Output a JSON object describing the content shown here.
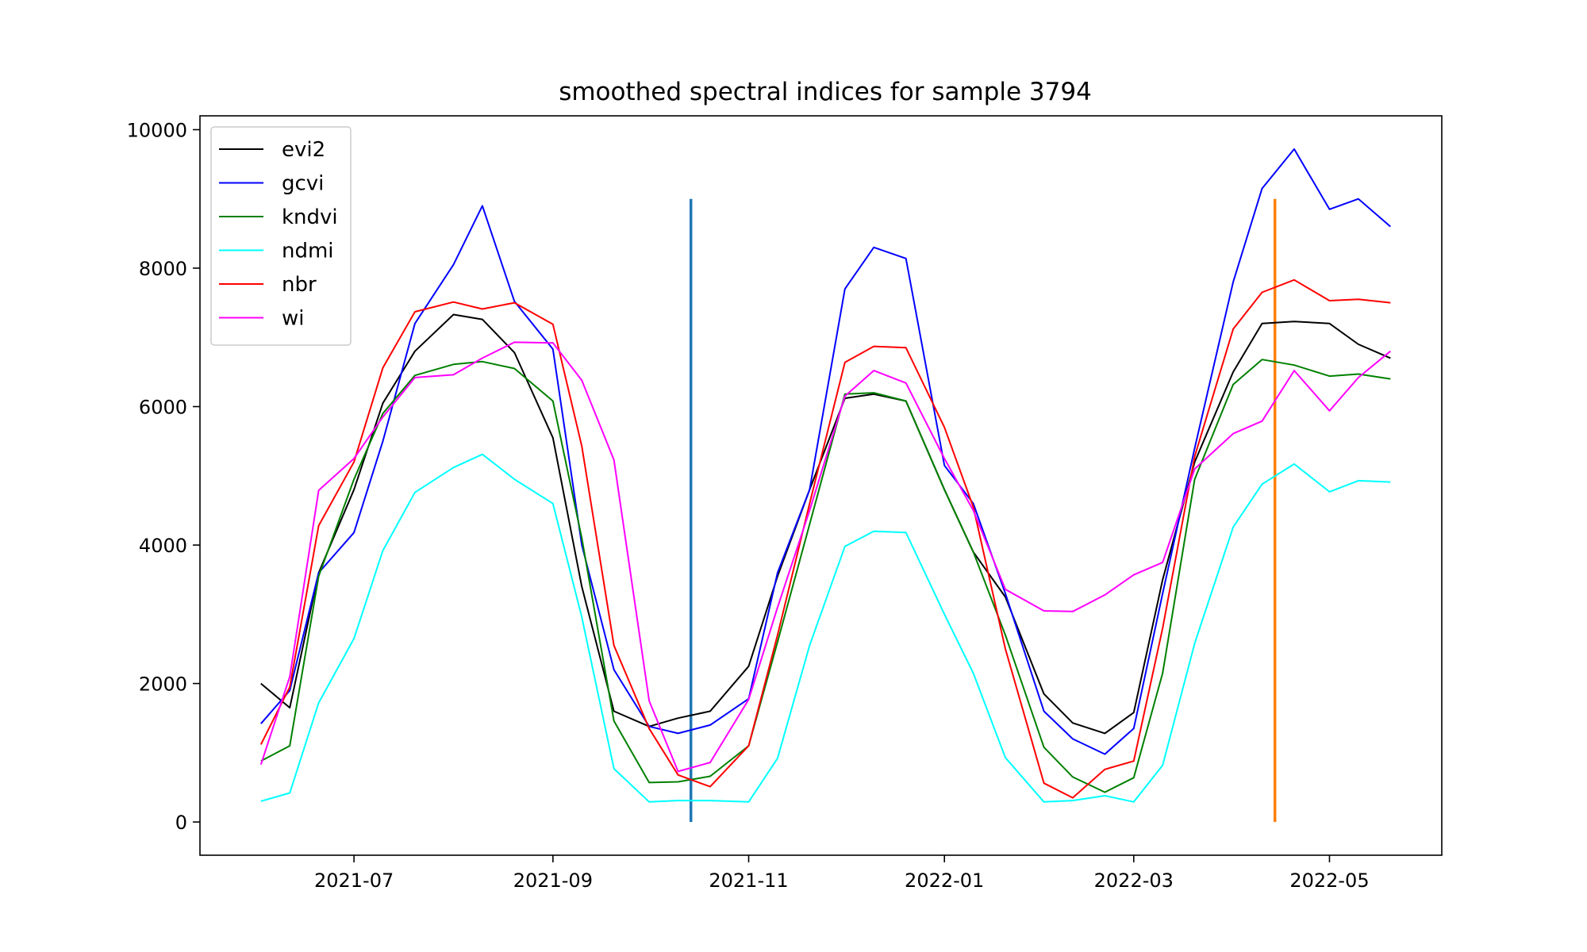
{
  "chart_data": {
    "type": "line",
    "title": "smoothed spectral indices for sample 3794",
    "xlabel": "",
    "ylabel": "",
    "x_axis_type": "date",
    "xlim": [
      "2021-05-14",
      "2022-06-05"
    ],
    "ylim": [
      -480,
      10200
    ],
    "x_ticks": [
      "2021-07-01",
      "2021-09-01",
      "2021-11-01",
      "2022-01-01",
      "2022-03-01",
      "2022-05-01"
    ],
    "x_tick_labels": [
      "2021-07",
      "2021-09",
      "2021-11",
      "2022-01",
      "2022-03",
      "2022-05"
    ],
    "y_ticks": [
      0,
      2000,
      4000,
      6000,
      8000,
      10000
    ],
    "y_tick_labels": [
      "0",
      "2000",
      "4000",
      "6000",
      "8000",
      "10000"
    ],
    "grid": false,
    "legend_position": "top-left",
    "x": [
      "2021-06-02",
      "2021-06-11",
      "2021-06-20",
      "2021-07-01",
      "2021-07-10",
      "2021-07-20",
      "2021-08-01",
      "2021-08-10",
      "2021-08-20",
      "2021-09-01",
      "2021-09-10",
      "2021-09-20",
      "2021-10-01",
      "2021-10-10",
      "2021-10-20",
      "2021-11-01",
      "2021-11-10",
      "2021-11-20",
      "2021-12-01",
      "2021-12-10",
      "2021-12-20",
      "2022-01-01",
      "2022-01-10",
      "2022-01-20",
      "2022-02-01",
      "2022-02-10",
      "2022-02-20",
      "2022-03-01",
      "2022-03-10",
      "2022-03-20",
      "2022-04-01",
      "2022-04-10",
      "2022-04-20",
      "2022-05-01",
      "2022-05-10",
      "2022-05-20"
    ],
    "series": [
      {
        "name": "evi2",
        "color": "#000000",
        "values": [
          2000,
          1650,
          3600,
          4800,
          6050,
          6800,
          7330,
          7260,
          6780,
          5550,
          3400,
          1600,
          1380,
          1500,
          1600,
          2250,
          3550,
          4800,
          6120,
          6180,
          6080,
          4800,
          3900,
          3250,
          1850,
          1430,
          1280,
          1580,
          3500,
          5200,
          6500,
          7200,
          7230,
          7200,
          6900,
          6700
        ]
      },
      {
        "name": "gcvi",
        "color": "#0000ff",
        "values": [
          1420,
          1900,
          3600,
          4180,
          5500,
          7200,
          8050,
          8900,
          7520,
          6830,
          4000,
          2200,
          1380,
          1280,
          1400,
          1780,
          3600,
          4800,
          7700,
          8300,
          8140,
          5150,
          4600,
          3300,
          1600,
          1200,
          980,
          1350,
          3300,
          5400,
          7800,
          9150,
          9720,
          8850,
          9000,
          8600
        ]
      },
      {
        "name": "kndvi",
        "color": "#008000",
        "values": [
          880,
          1100,
          3550,
          4950,
          5900,
          6450,
          6610,
          6650,
          6550,
          6080,
          4100,
          1460,
          570,
          580,
          660,
          1100,
          2600,
          4300,
          6180,
          6200,
          6080,
          4800,
          3900,
          2700,
          1080,
          650,
          430,
          640,
          2150,
          4950,
          6320,
          6680,
          6600,
          6440,
          6470,
          6400
        ]
      },
      {
        "name": "ndmi",
        "color": "#00ffff",
        "values": [
          300,
          420,
          1720,
          2650,
          3920,
          4760,
          5120,
          5310,
          4950,
          4600,
          2960,
          770,
          290,
          310,
          310,
          290,
          920,
          2550,
          3980,
          4200,
          4180,
          3000,
          2150,
          930,
          290,
          310,
          380,
          290,
          820,
          2580,
          4260,
          4880,
          5170,
          4770,
          4930,
          4910
        ]
      },
      {
        "name": "nbr",
        "color": "#ff0000",
        "values": [
          1120,
          1950,
          4280,
          5200,
          6560,
          7370,
          7510,
          7410,
          7500,
          7190,
          5430,
          2550,
          1350,
          680,
          510,
          1100,
          2700,
          4600,
          6640,
          6870,
          6850,
          5700,
          4550,
          2500,
          560,
          350,
          760,
          880,
          2800,
          5280,
          7120,
          7650,
          7830,
          7530,
          7550,
          7500
        ]
      },
      {
        "name": "wi",
        "color": "#ff00ff",
        "values": [
          830,
          2100,
          4790,
          5250,
          5850,
          6420,
          6460,
          6700,
          6930,
          6920,
          6380,
          5230,
          1750,
          730,
          860,
          1770,
          3100,
          4500,
          6150,
          6520,
          6340,
          5250,
          4500,
          3360,
          3050,
          3040,
          3280,
          3570,
          3750,
          5100,
          5610,
          5790,
          6520,
          5940,
          6420,
          6800
        ]
      }
    ],
    "vertical_markers": [
      {
        "x": "2021-10-14",
        "y_from": 0,
        "y_to": 9000,
        "color": "#1f77b4"
      },
      {
        "x": "2022-04-14",
        "y_from": 0,
        "y_to": 9000,
        "color": "#ff7f0e"
      }
    ]
  }
}
